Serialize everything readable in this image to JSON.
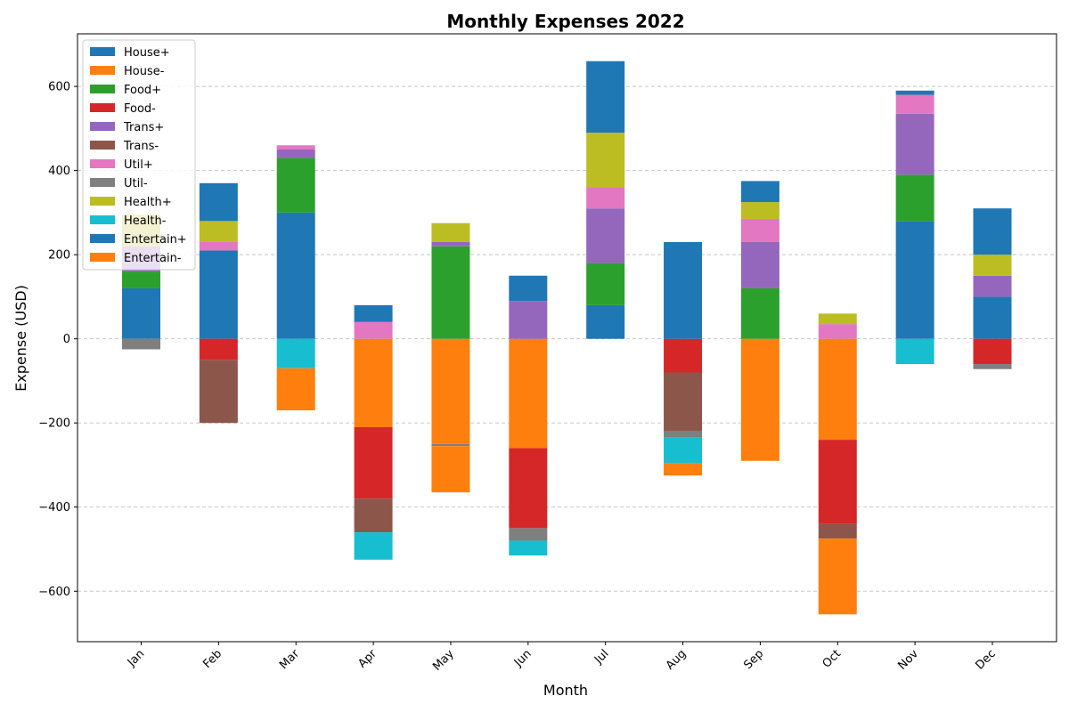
{
  "chart_data": {
    "type": "bar",
    "stacked": true,
    "title": "Monthly Expenses 2022",
    "xlabel": "Month",
    "ylabel": "Expense (USD)",
    "ylim": [
      -720,
      725
    ],
    "yticks": [
      -600,
      -400,
      -200,
      0,
      200,
      400,
      600
    ],
    "grid": "y-dashed",
    "legend_position": "top-left",
    "categories": [
      "Jan",
      "Feb",
      "Mar",
      "Apr",
      "May",
      "Jun",
      "Jul",
      "Aug",
      "Sep",
      "Oct",
      "Nov",
      "Dec"
    ],
    "series": [
      {
        "name": "House+",
        "color": "#1f77b4",
        "values": [
          120,
          210,
          300,
          0,
          0,
          0,
          80,
          0,
          0,
          0,
          280,
          100
        ]
      },
      {
        "name": "House-",
        "color": "#ff7f0e",
        "values": [
          0,
          0,
          0,
          -210,
          -250,
          -260,
          0,
          0,
          -290,
          -240,
          0,
          0
        ]
      },
      {
        "name": "Food+",
        "color": "#2ca02c",
        "values": [
          40,
          0,
          130,
          0,
          220,
          0,
          100,
          0,
          120,
          0,
          110,
          0
        ]
      },
      {
        "name": "Food-",
        "color": "#d62728",
        "values": [
          0,
          -50,
          0,
          -170,
          0,
          -190,
          0,
          -80,
          0,
          -200,
          0,
          -60
        ]
      },
      {
        "name": "Trans+",
        "color": "#9467bd",
        "values": [
          60,
          0,
          20,
          0,
          10,
          90,
          130,
          0,
          110,
          0,
          145,
          50
        ]
      },
      {
        "name": "Trans-",
        "color": "#8c564b",
        "values": [
          0,
          -150,
          0,
          -80,
          0,
          0,
          0,
          -140,
          0,
          -35,
          0,
          0
        ]
      },
      {
        "name": "Util+",
        "color": "#e377c2",
        "values": [
          0,
          20,
          10,
          40,
          0,
          0,
          50,
          0,
          55,
          35,
          45,
          0
        ]
      },
      {
        "name": "Util-",
        "color": "#7f7f7f",
        "values": [
          -25,
          0,
          0,
          0,
          -5,
          -30,
          0,
          -15,
          0,
          0,
          0,
          -12
        ]
      },
      {
        "name": "Health+",
        "color": "#bcbd22",
        "values": [
          75,
          50,
          0,
          0,
          45,
          0,
          130,
          0,
          40,
          25,
          0,
          50
        ]
      },
      {
        "name": "Health-",
        "color": "#17becf",
        "values": [
          0,
          0,
          -70,
          -65,
          0,
          -35,
          0,
          -60,
          0,
          0,
          -60,
          0
        ]
      },
      {
        "name": "Entertain+",
        "color": "#1f77b4",
        "values": [
          0,
          90,
          0,
          40,
          0,
          60,
          170,
          230,
          50,
          0,
          10,
          110
        ]
      },
      {
        "name": "Entertain-",
        "color": "#ff7f0e",
        "values": [
          0,
          0,
          -100,
          0,
          -110,
          0,
          0,
          -30,
          0,
          -180,
          0,
          0
        ]
      }
    ]
  }
}
